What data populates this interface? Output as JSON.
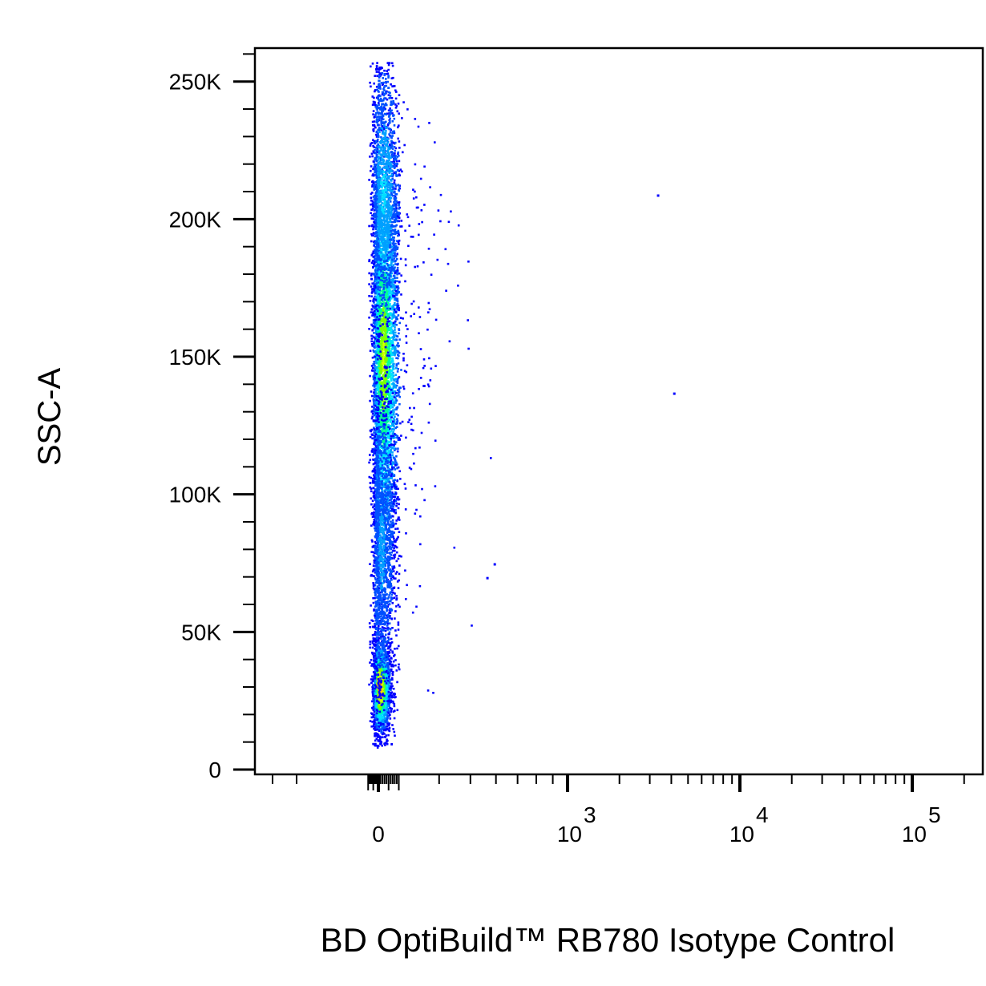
{
  "chart_data": {
    "type": "scatter",
    "title": "",
    "xlabel": "BD OptiBuild™ RB780 Isotype Control",
    "ylabel": "SSC-A",
    "x_scale": "biexponential",
    "xlim": [
      -300,
      200000
    ],
    "ylim": [
      0,
      262144
    ],
    "grid": false,
    "legend": "none",
    "color_scale": "density (blue-cyan-green-yellow-red)",
    "y_ticks": [
      {
        "value": 0,
        "label": "0"
      },
      {
        "value": 50000,
        "label": "50K"
      },
      {
        "value": 100000,
        "label": "100K"
      },
      {
        "value": 150000,
        "label": "150K"
      },
      {
        "value": 200000,
        "label": "200K"
      },
      {
        "value": 250000,
        "label": "250K"
      }
    ],
    "x_ticks": [
      {
        "value": 0,
        "label": "0"
      },
      {
        "value": 1000,
        "base": "10",
        "exp": "3"
      },
      {
        "value": 10000,
        "base": "10",
        "exp": "4"
      },
      {
        "value": 100000,
        "base": "10",
        "exp": "5"
      }
    ],
    "populations": [
      {
        "x_center": 0,
        "x_spread": 80,
        "y_center": 30000,
        "y_spread": 8000,
        "events": 2200,
        "peak_color": "#ff1a00"
      },
      {
        "x_center": 60,
        "x_spread": 120,
        "y_center": 150000,
        "y_spread": 40000,
        "events": 4200,
        "peak_color": "#c8f000"
      },
      {
        "x_center": 60,
        "x_spread": 130,
        "y_center": 210000,
        "y_spread": 25000,
        "events": 1400,
        "peak_color": "#00d8ff"
      },
      {
        "x_center": 30,
        "x_spread": 110,
        "y_center": 80000,
        "y_spread": 30000,
        "events": 1600,
        "peak_color": "#00a0ff"
      }
    ],
    "outliers": [
      {
        "x": 3300,
        "y": 209000
      },
      {
        "x": 4100,
        "y": 137000
      },
      {
        "x": 560,
        "y": 70000
      },
      {
        "x": 590,
        "y": 75000
      },
      {
        "x": 230,
        "y": 181000
      },
      {
        "x": 185,
        "y": 95000
      },
      {
        "x": 200,
        "y": 82000
      },
      {
        "x": 180,
        "y": 38000
      },
      {
        "x": 200,
        "y": 38000
      },
      {
        "x": 210,
        "y": 28000
      }
    ]
  }
}
